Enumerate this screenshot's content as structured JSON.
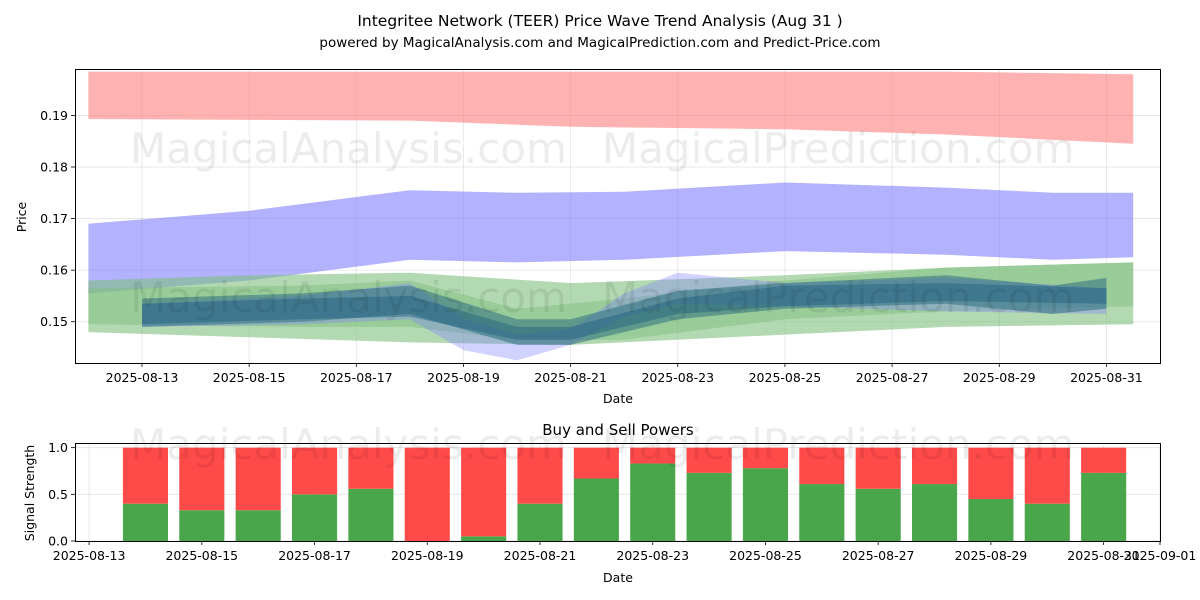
{
  "page": {
    "title": "Integritee Network (TEER) Price Wave Trend Analysis (Aug 31 )",
    "subtitle": "powered by MagicalAnalysis.com and MagicalPrediction.com and Predict-Price.com",
    "watermarks": [
      "MagicalAnalysis.com",
      "MagicalPrediction.com"
    ]
  },
  "chart_data": [
    {
      "type": "area",
      "title": "",
      "xlabel": "Date",
      "ylabel": "Price",
      "x_range": [
        "2025-08-11T18:00",
        "2025-09-01T00:00"
      ],
      "ylim": [
        0.142,
        0.199
      ],
      "x_ticks": [
        "2025-08-13",
        "2025-08-15",
        "2025-08-17",
        "2025-08-19",
        "2025-08-21",
        "2025-08-23",
        "2025-08-25",
        "2025-08-27",
        "2025-08-29",
        "2025-08-31"
      ],
      "y_ticks": [
        0.15,
        0.16,
        0.17,
        0.18,
        0.19
      ],
      "grid": true,
      "bands": [
        {
          "color": "#ff7f7f",
          "opacity": 0.6,
          "x": [
            "2025-08-12",
            "2025-08-18",
            "2025-08-21",
            "2025-08-25",
            "2025-08-28",
            "2025-08-31T12:00"
          ],
          "upper": [
            0.1985,
            0.1985,
            0.1985,
            0.1985,
            0.1985,
            0.198
          ],
          "lower": [
            0.1893,
            0.189,
            0.1878,
            0.1873,
            0.1863,
            0.1845
          ]
        },
        {
          "color": "#7f7fff",
          "opacity": 0.6,
          "x": [
            "2025-08-12",
            "2025-08-15",
            "2025-08-18",
            "2025-08-20",
            "2025-08-22",
            "2025-08-25",
            "2025-08-28",
            "2025-08-30",
            "2025-08-31T12:00"
          ],
          "upper": [
            0.169,
            0.1715,
            0.1755,
            0.175,
            0.1752,
            0.177,
            0.176,
            0.175,
            0.175
          ],
          "lower": [
            0.1555,
            0.158,
            0.162,
            0.1615,
            0.162,
            0.1637,
            0.163,
            0.162,
            0.1625
          ]
        },
        {
          "color": "#7fbf7f",
          "opacity": 0.6,
          "x": [
            "2025-08-12",
            "2025-08-15",
            "2025-08-18",
            "2025-08-21",
            "2025-08-25",
            "2025-08-28",
            "2025-08-31T12:00"
          ],
          "upper": [
            0.158,
            0.159,
            0.1595,
            0.1575,
            0.159,
            0.1605,
            0.1615
          ],
          "lower": [
            0.148,
            0.147,
            0.146,
            0.1455,
            0.1475,
            0.149,
            0.1495
          ]
        },
        {
          "color": "#7fbf7f",
          "opacity": 0.5,
          "x": [
            "2025-08-12",
            "2025-08-16",
            "2025-08-18",
            "2025-08-20",
            "2025-08-22",
            "2025-08-25",
            "2025-08-28",
            "2025-08-31T12:00"
          ],
          "upper": [
            0.1565,
            0.157,
            0.158,
            0.1525,
            0.1545,
            0.158,
            0.1605,
            0.1615
          ],
          "lower": [
            0.1495,
            0.149,
            0.149,
            0.1465,
            0.1465,
            0.1505,
            0.152,
            0.153
          ]
        },
        {
          "color": "#7f7fff",
          "opacity": 0.35,
          "x": [
            "2025-08-13",
            "2025-08-16",
            "2025-08-18",
            "2025-08-19",
            "2025-08-20",
            "2025-08-21",
            "2025-08-22",
            "2025-08-23",
            "2025-08-25",
            "2025-08-28",
            "2025-08-31"
          ],
          "upper": [
            0.1535,
            0.155,
            0.1575,
            0.1505,
            0.1475,
            0.1485,
            0.1555,
            0.1595,
            0.1575,
            0.1585,
            0.1565
          ],
          "lower": [
            0.149,
            0.1495,
            0.1505,
            0.1445,
            0.1425,
            0.1455,
            0.151,
            0.1535,
            0.153,
            0.152,
            0.1515
          ]
        },
        {
          "color": "#2f6f7f",
          "opacity": 0.55,
          "x": [
            "2025-08-13",
            "2025-08-16",
            "2025-08-18",
            "2025-08-20",
            "2025-08-21",
            "2025-08-23",
            "2025-08-25",
            "2025-08-28",
            "2025-08-30",
            "2025-08-31"
          ],
          "upper": [
            0.1545,
            0.1555,
            0.157,
            0.1505,
            0.1505,
            0.156,
            0.1575,
            0.159,
            0.157,
            0.1585
          ],
          "lower": [
            0.149,
            0.15,
            0.1515,
            0.1455,
            0.1455,
            0.1505,
            0.1525,
            0.1535,
            0.1515,
            0.1525
          ]
        },
        {
          "color": "#1f5f7f",
          "opacity": 0.45,
          "x": [
            "2025-08-13",
            "2025-08-16",
            "2025-08-18",
            "2025-08-20",
            "2025-08-21",
            "2025-08-23",
            "2025-08-25",
            "2025-08-28",
            "2025-08-31"
          ],
          "upper": [
            0.1535,
            0.1545,
            0.155,
            0.149,
            0.149,
            0.1545,
            0.157,
            0.1575,
            0.1565
          ],
          "lower": [
            0.1495,
            0.1505,
            0.151,
            0.1465,
            0.1465,
            0.1515,
            0.153,
            0.154,
            0.1535
          ]
        }
      ]
    },
    {
      "type": "bar",
      "title": "Buy and Sell Powers",
      "xlabel": "Date",
      "ylabel": "Signal Strength",
      "x_range": [
        "2025-08-12T18:00",
        "2025-09-01T00:00"
      ],
      "ylim": [
        0,
        1.05
      ],
      "x_ticks": [
        "2025-08-13",
        "2025-08-15",
        "2025-08-17",
        "2025-08-19",
        "2025-08-21",
        "2025-08-23",
        "2025-08-25",
        "2025-08-27",
        "2025-08-29",
        "2025-08-31",
        "2025-09-01"
      ],
      "y_ticks": [
        "0.0",
        "0.5",
        "1.0"
      ],
      "grid": true,
      "categories": [
        "2025-08-14",
        "2025-08-15",
        "2025-08-16",
        "2025-08-17",
        "2025-08-18",
        "2025-08-19",
        "2025-08-20",
        "2025-08-21",
        "2025-08-22",
        "2025-08-23",
        "2025-08-24",
        "2025-08-25",
        "2025-08-26",
        "2025-08-27",
        "2025-08-28",
        "2025-08-29",
        "2025-08-30",
        "2025-08-31"
      ],
      "series": [
        {
          "color": "#4aa64a",
          "values": [
            0.4,
            0.33,
            0.33,
            0.5,
            0.56,
            0.0,
            0.05,
            0.4,
            0.67,
            0.83,
            0.73,
            0.78,
            0.61,
            0.56,
            0.61,
            0.45,
            0.4,
            0.73
          ]
        },
        {
          "color": "#ff4a4a",
          "values": [
            0.6,
            0.67,
            0.67,
            0.5,
            0.44,
            1.0,
            0.95,
            0.6,
            0.33,
            0.17,
            0.27,
            0.22,
            0.39,
            0.44,
            0.39,
            0.55,
            0.6,
            0.27
          ]
        }
      ]
    }
  ]
}
